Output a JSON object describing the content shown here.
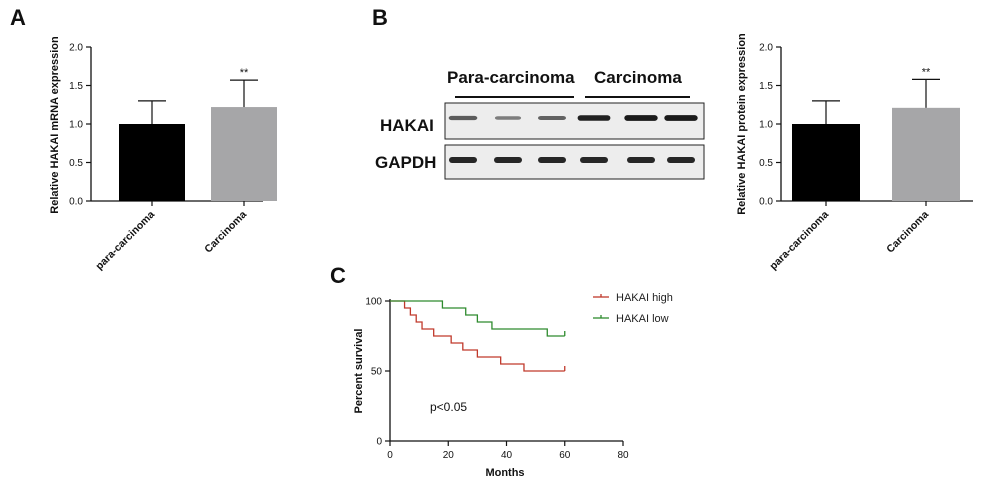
{
  "panels": {
    "a": {
      "letter": "A"
    },
    "b": {
      "letter": "B"
    },
    "c": {
      "letter": "C"
    }
  },
  "colors": {
    "para_bar": "#000000",
    "carcinoma_bar": "#a6a6a8",
    "hakai_high": "#c0392b",
    "hakai_low": "#2e8b2e"
  },
  "blot": {
    "group_left": "Para-carcinoma",
    "group_right": "Carcinoma",
    "row1_label": "HAKAI",
    "row2_label": "GAPDH",
    "row1_intensity": [
      0.55,
      0.35,
      0.5,
      0.9,
      0.95,
      0.95
    ],
    "row2_intensity": [
      0.9,
      0.9,
      0.9,
      0.9,
      0.9,
      0.9
    ]
  },
  "chart_data": [
    {
      "type": "bar",
      "panel": "A",
      "categories": [
        "para-carcinoma",
        "Carcinoma"
      ],
      "values": [
        1.0,
        1.22
      ],
      "errors": [
        0.3,
        0.35
      ],
      "significance": [
        "",
        "**"
      ],
      "ylabel": "Relative HAKAI mRNA expression",
      "ylim": [
        0,
        2.0
      ],
      "yticks": [
        "0.0",
        "0.5",
        "1.0",
        "1.5",
        "2.0"
      ],
      "xlabel": ""
    },
    {
      "type": "bar",
      "panel": "B",
      "categories": [
        "para-carcinoma",
        "Carcinoma"
      ],
      "values": [
        1.0,
        1.21
      ],
      "errors": [
        0.3,
        0.37
      ],
      "significance": [
        "",
        "**"
      ],
      "ylabel": "Relative HAKAI protein expression",
      "ylim": [
        0,
        2.0
      ],
      "yticks": [
        "0.0",
        "0.5",
        "1.0",
        "1.5",
        "2.0"
      ],
      "xlabel": ""
    },
    {
      "type": "line",
      "panel": "C",
      "xlabel": "Months",
      "ylabel": "Percent survival",
      "xlim": [
        0,
        80
      ],
      "ylim": [
        0,
        100
      ],
      "xticks": [
        "0",
        "20",
        "40",
        "60",
        "80"
      ],
      "yticks": [
        "0",
        "50",
        "100"
      ],
      "annotation": "p<0.05",
      "legend_position": "top-right",
      "series": [
        {
          "name": "HAKAI high",
          "steps": [
            [
              0,
              100
            ],
            [
              5,
              95
            ],
            [
              7,
              90
            ],
            [
              9,
              85
            ],
            [
              11,
              80
            ],
            [
              15,
              75
            ],
            [
              21,
              70
            ],
            [
              25,
              65
            ],
            [
              30,
              60
            ],
            [
              38,
              55
            ],
            [
              46,
              50
            ],
            [
              60,
              50
            ]
          ]
        },
        {
          "name": "HAKAI low",
          "steps": [
            [
              0,
              100
            ],
            [
              18,
              95
            ],
            [
              26,
              90
            ],
            [
              30,
              85
            ],
            [
              35,
              80
            ],
            [
              54,
              75
            ],
            [
              60,
              75
            ]
          ]
        }
      ]
    }
  ]
}
